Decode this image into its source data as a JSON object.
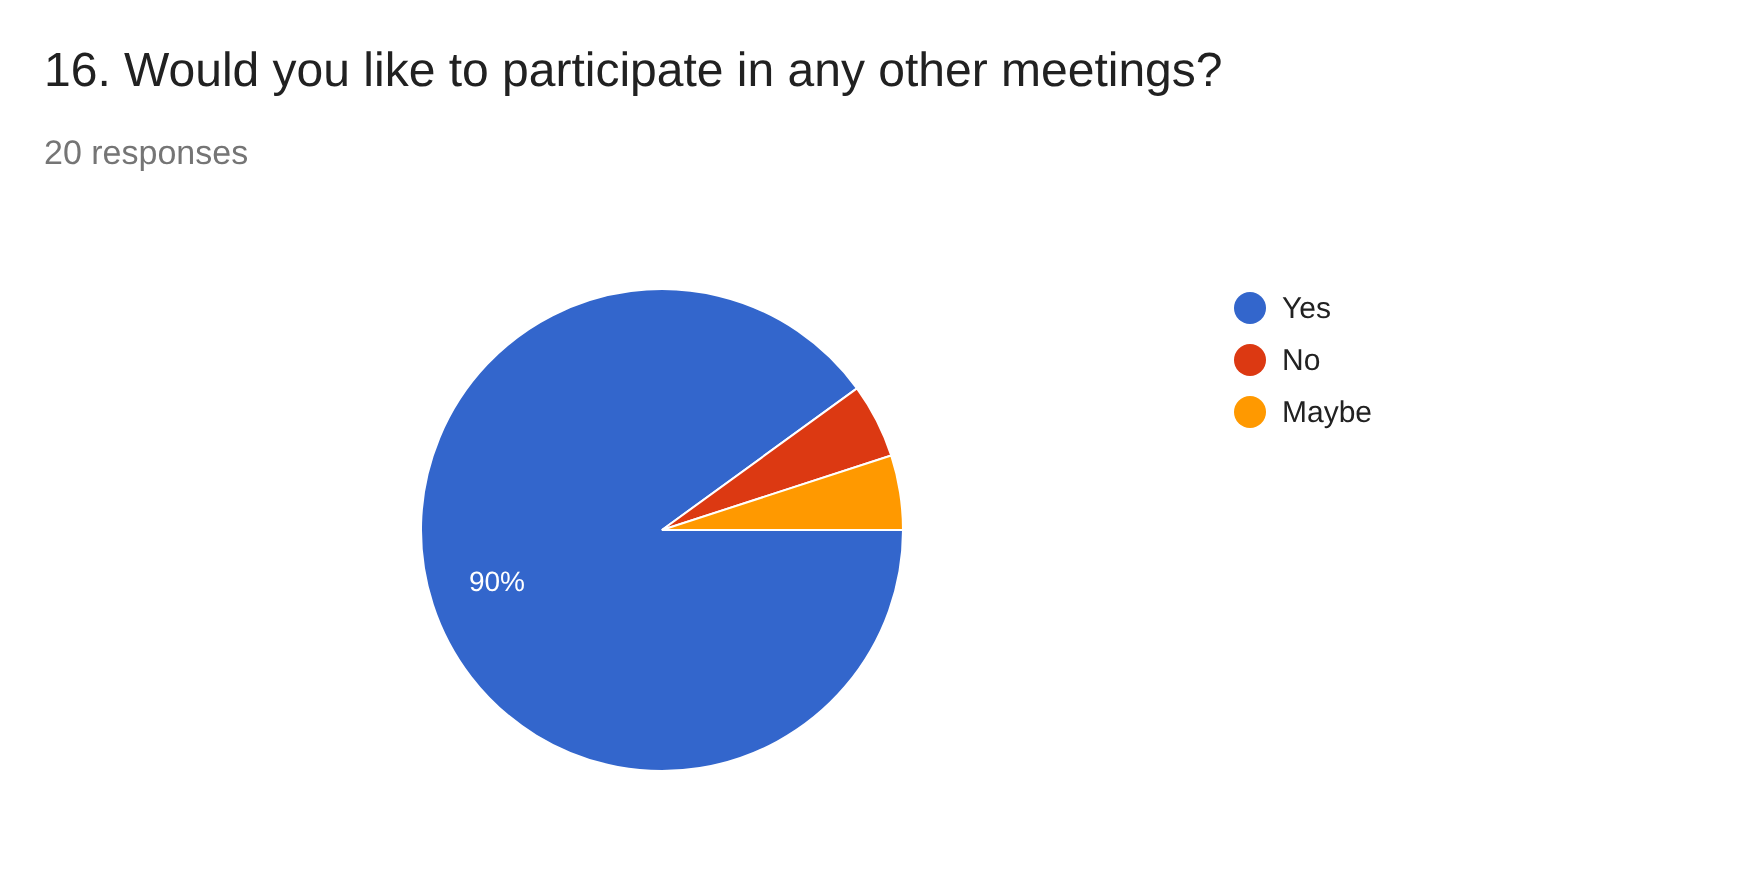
{
  "chart_data": {
    "type": "pie",
    "title": "16. Would you like to participate in any other meetings?",
    "subtitle": "20 responses",
    "categories": [
      "Yes",
      "No",
      "Maybe"
    ],
    "values": [
      90,
      5,
      5
    ],
    "colors": [
      "#3366cc",
      "#dc3912",
      "#ff9900"
    ],
    "value_labels": [
      "90%",
      null,
      null
    ],
    "legend": "right"
  }
}
